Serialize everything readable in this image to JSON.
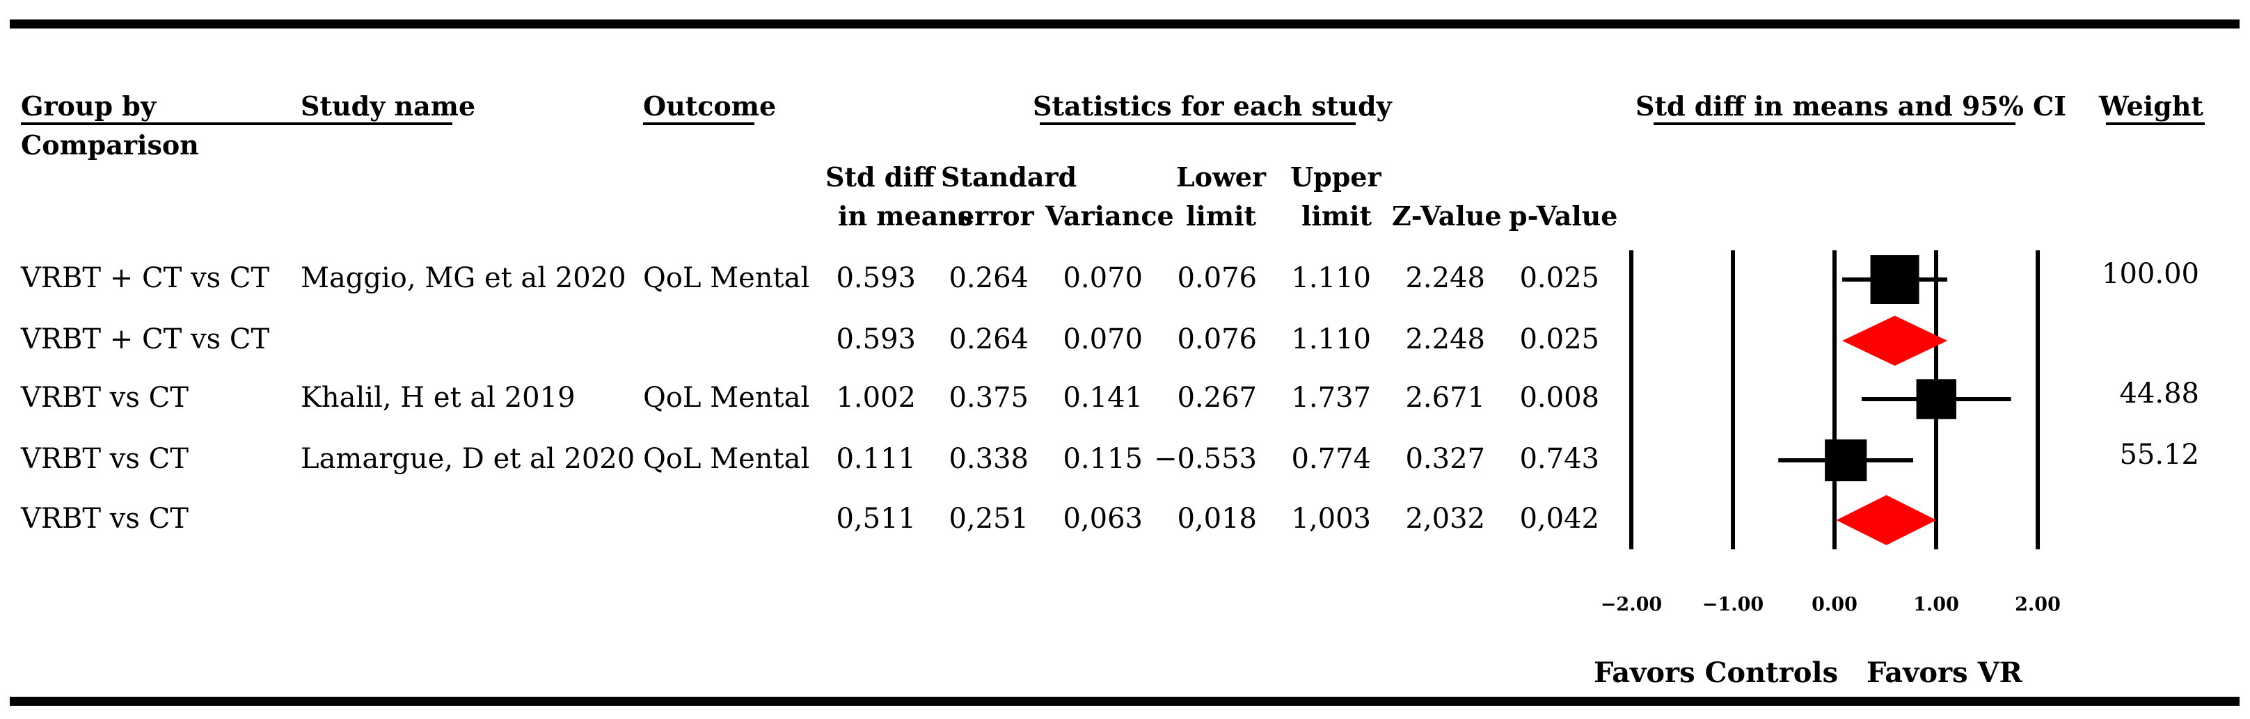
{
  "headers": {
    "group_by": "Group by",
    "comparison": "Comparison",
    "study_name": "Study name",
    "outcome": "Outcome",
    "statistics": "Statistics for each study",
    "ci_title": "Std diff in means and 95% CI",
    "weight": "Weight",
    "columns": [
      {
        "line1": "Std diff",
        "line2": "in means"
      },
      {
        "line1": "Standard",
        "line2": "error"
      },
      {
        "line1": "",
        "line2": "Variance"
      },
      {
        "line1": "Lower",
        "line2": "limit"
      },
      {
        "line1": "Upper",
        "line2": "limit"
      },
      {
        "line1": "",
        "line2": "Z-Value"
      },
      {
        "line1": "",
        "line2": "p-Value"
      }
    ]
  },
  "rows": [
    {
      "group": "VRBT + CT vs CT",
      "study": "Maggio, MG et al 2020",
      "outcome": "QoL Mental",
      "smd": "0.593",
      "se": "0.264",
      "var": "0.070",
      "lower": "0.076",
      "upper": "1.110",
      "z": "2.248",
      "p": "0.025",
      "weight": "100.00"
    },
    {
      "group": "VRBT + CT vs CT",
      "study": "",
      "outcome": "",
      "smd": "0.593",
      "se": "0.264",
      "var": "0.070",
      "lower": "0.076",
      "upper": "1.110",
      "z": "2.248",
      "p": "0.025",
      "weight": ""
    },
    {
      "group": "VRBT vs CT",
      "study": "Khalil, H et al 2019",
      "outcome": "QoL Mental",
      "smd": "1.002",
      "se": "0.375",
      "var": "0.141",
      "lower": "0.267",
      "upper": "1.737",
      "z": "2.671",
      "p": "0.008",
      "weight": "44.88"
    },
    {
      "group": "VRBT vs CT",
      "study": "Lamargue, D et al 2020",
      "outcome": "QoL Mental",
      "smd": "0.111",
      "se": "0.338",
      "var": "0.115",
      "lower": "−0.553",
      "upper": "0.774",
      "z": "0.327",
      "p": "0.743",
      "weight": "55.12"
    },
    {
      "group": "VRBT vs CT",
      "study": "",
      "outcome": "",
      "smd": "0,511",
      "se": "0,251",
      "var": "0,063",
      "lower": "0,018",
      "upper": "1,003",
      "z": "2,032",
      "p": "0,042",
      "weight": ""
    }
  ],
  "axis": {
    "ticks": [
      "−2.00",
      "−1.00",
      "0.00",
      "1.00",
      "2.00"
    ],
    "favors_left": "Favors Controls",
    "favors_right": "Favors VR"
  },
  "chart_data": {
    "type": "forest",
    "title": "Std diff in means and 95% CI",
    "xlim": [
      -2,
      2
    ],
    "xticks": [
      -2,
      -1,
      0,
      1,
      2
    ],
    "grid_lines_at": [
      -2,
      -1,
      0,
      1,
      2
    ],
    "series": [
      {
        "name": "Maggio, MG et al 2020",
        "kind": "study",
        "estimate": 0.593,
        "lower": 0.076,
        "upper": 1.11,
        "weight": 100.0,
        "color": "#000000"
      },
      {
        "name": "",
        "kind": "pooled",
        "estimate": 0.593,
        "lower": 0.076,
        "upper": 1.11,
        "color": "#ff0000"
      },
      {
        "name": "Khalil, H et al 2019",
        "kind": "study",
        "estimate": 1.002,
        "lower": 0.267,
        "upper": 1.737,
        "weight": 44.88,
        "color": "#000000"
      },
      {
        "name": "Lamargue, D et al 2020",
        "kind": "study",
        "estimate": 0.111,
        "lower": -0.553,
        "upper": 0.774,
        "weight": 55.12,
        "color": "#000000"
      },
      {
        "name": "",
        "kind": "pooled",
        "estimate": 0.511,
        "lower": 0.018,
        "upper": 1.003,
        "color": "#ff0000"
      }
    ]
  }
}
